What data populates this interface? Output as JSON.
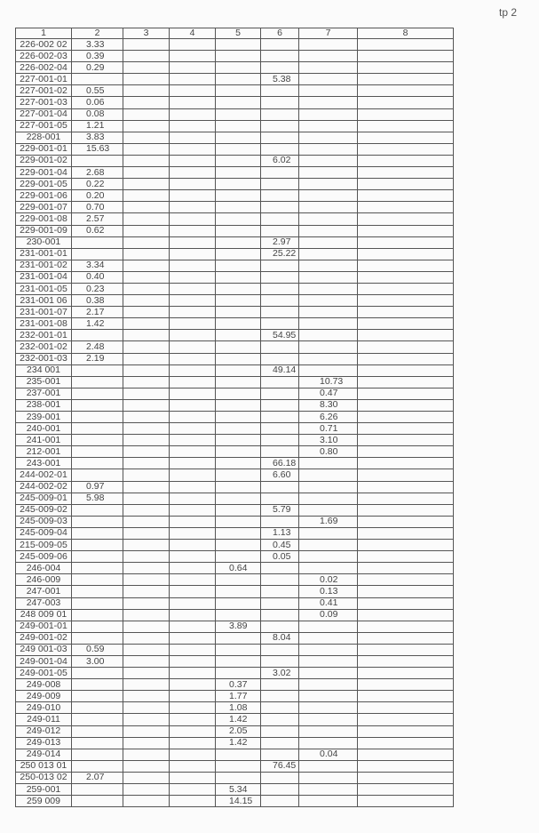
{
  "page_mark": "tp 2",
  "table": {
    "headers": [
      "1",
      "2",
      "3",
      "4",
      "5",
      "6",
      "7",
      "8"
    ],
    "rows": [
      [
        "226-002 02",
        "3.33",
        "",
        "",
        "",
        "",
        "",
        ""
      ],
      [
        "226-002-03",
        "0.39",
        "",
        "",
        "",
        "",
        "",
        ""
      ],
      [
        "226-002-04",
        "0.29",
        "",
        "",
        "",
        "",
        "",
        ""
      ],
      [
        "227-001-01",
        "",
        "",
        "",
        "",
        "5.38",
        "",
        ""
      ],
      [
        "227-001-02",
        "0.55",
        "",
        "",
        "",
        "",
        "",
        ""
      ],
      [
        "227-001-03",
        "0.06",
        "",
        "",
        "",
        "",
        "",
        ""
      ],
      [
        "227-001-04",
        "0.08",
        "",
        "",
        "",
        "",
        "",
        ""
      ],
      [
        "227-001-05",
        "1.21",
        "",
        "",
        "",
        "",
        "",
        ""
      ],
      [
        "228-001",
        "3.83",
        "",
        "",
        "",
        "",
        "",
        ""
      ],
      [
        "229-001-01",
        "15.63",
        "",
        "",
        "",
        "",
        "",
        ""
      ],
      [
        "229-001-02",
        "",
        "",
        "",
        "",
        "6.02",
        "",
        ""
      ],
      [
        "229-001-04",
        "2.68",
        "",
        "",
        "",
        "",
        "",
        ""
      ],
      [
        "229-001-05",
        "0.22",
        "",
        "",
        "",
        "",
        "",
        ""
      ],
      [
        "229-001-06",
        "0.20",
        "",
        "",
        "",
        "",
        "",
        ""
      ],
      [
        "229-001-07",
        "0.70",
        "",
        "",
        "",
        "",
        "",
        ""
      ],
      [
        "229-001-08",
        "2.57",
        "",
        "",
        "",
        "",
        "",
        ""
      ],
      [
        "229-001-09",
        "0.62",
        "",
        "",
        "",
        "",
        "",
        ""
      ],
      [
        "230-001",
        "",
        "",
        "",
        "",
        "2.97",
        "",
        ""
      ],
      [
        "231-001-01",
        "",
        "",
        "",
        "",
        "25.22",
        "",
        ""
      ],
      [
        "231-001-02",
        "3.34",
        "",
        "",
        "",
        "",
        "",
        ""
      ],
      [
        "231-001-04",
        "0.40",
        "",
        "",
        "",
        "",
        "",
        ""
      ],
      [
        "231-001-05",
        "0.23",
        "",
        "",
        "",
        "",
        "",
        ""
      ],
      [
        "231-001 06",
        "0.38",
        "",
        "",
        "",
        "",
        "",
        ""
      ],
      [
        "231-001-07",
        "2.17",
        "",
        "",
        "",
        "",
        "",
        ""
      ],
      [
        "231-001-08",
        "1.42",
        "",
        "",
        "",
        "",
        "",
        ""
      ],
      [
        "232-001-01",
        "",
        "",
        "",
        "",
        "54.95",
        "",
        ""
      ],
      [
        "232-001-02",
        "2.48",
        "",
        "",
        "",
        "",
        "",
        ""
      ],
      [
        "232-001-03",
        "2.19",
        "",
        "",
        "",
        "",
        "",
        ""
      ],
      [
        "234 001",
        "",
        "",
        "",
        "",
        "49.14",
        "",
        ""
      ],
      [
        "235-001",
        "",
        "",
        "",
        "",
        "",
        "10.73",
        ""
      ],
      [
        "237-001",
        "",
        "",
        "",
        "",
        "",
        "0.47",
        ""
      ],
      [
        "238-001",
        "",
        "",
        "",
        "",
        "",
        "8.30",
        ""
      ],
      [
        "239-001",
        "",
        "",
        "",
        "",
        "",
        "6.26",
        ""
      ],
      [
        "240-001",
        "",
        "",
        "",
        "",
        "",
        "0.71",
        ""
      ],
      [
        "241-001",
        "",
        "",
        "",
        "",
        "",
        "3.10",
        ""
      ],
      [
        "212-001",
        "",
        "",
        "",
        "",
        "",
        "0.80",
        ""
      ],
      [
        "243-001",
        "",
        "",
        "",
        "",
        "66.18",
        "",
        ""
      ],
      [
        "244-002-01",
        "",
        "",
        "",
        "",
        "6.60",
        "",
        ""
      ],
      [
        "244-002-02",
        "0.97",
        "",
        "",
        "",
        "",
        "",
        ""
      ],
      [
        "245-009-01",
        "5.98",
        "",
        "",
        "",
        "",
        "",
        ""
      ],
      [
        "245-009-02",
        "",
        "",
        "",
        "",
        "5.79",
        "",
        ""
      ],
      [
        "245-009-03",
        "",
        "",
        "",
        "",
        "",
        "1.69",
        ""
      ],
      [
        "245-009-04",
        "",
        "",
        "",
        "",
        "1.13",
        "",
        ""
      ],
      [
        "215-009-05",
        "",
        "",
        "",
        "",
        "0.45",
        "",
        ""
      ],
      [
        "245-009-06",
        "",
        "",
        "",
        "",
        "0.05",
        "",
        ""
      ],
      [
        "246-004",
        "",
        "",
        "",
        "0.64",
        "",
        "",
        ""
      ],
      [
        "246-009",
        "",
        "",
        "",
        "",
        "",
        "0.02",
        ""
      ],
      [
        "247-001",
        "",
        "",
        "",
        "",
        "",
        "0.13",
        ""
      ],
      [
        "247-003",
        "",
        "",
        "",
        "",
        "",
        "0.41",
        ""
      ],
      [
        "248 009 01",
        "",
        "",
        "",
        "",
        "",
        "0.09",
        ""
      ],
      [
        "249-001-01",
        "",
        "",
        "",
        "3.89",
        "",
        "",
        ""
      ],
      [
        "249-001-02",
        "",
        "",
        "",
        "",
        "8.04",
        "",
        ""
      ],
      [
        "249 001-03",
        "0.59",
        "",
        "",
        "",
        "",
        "",
        ""
      ],
      [
        "249-001-04",
        "3.00",
        "",
        "",
        "",
        "",
        "",
        ""
      ],
      [
        "249-001-05",
        "",
        "",
        "",
        "",
        "3.02",
        "",
        ""
      ],
      [
        "249-008",
        "",
        "",
        "",
        "0.37",
        "",
        "",
        ""
      ],
      [
        "249-009",
        "",
        "",
        "",
        "1.77",
        "",
        "",
        ""
      ],
      [
        "249-010",
        "",
        "",
        "",
        "1.08",
        "",
        "",
        ""
      ],
      [
        "249-011",
        "",
        "",
        "",
        "1.42",
        "",
        "",
        ""
      ],
      [
        "249-012",
        "",
        "",
        "",
        "2.05",
        "",
        "",
        ""
      ],
      [
        "249-013",
        "",
        "",
        "",
        "1.42",
        "",
        "",
        ""
      ],
      [
        "249-014",
        "",
        "",
        "",
        "",
        "",
        "0.04",
        ""
      ],
      [
        "250 013 01",
        "",
        "",
        "",
        "",
        "76.45",
        "",
        ""
      ],
      [
        "250-013 02",
        "2.07",
        "",
        "",
        "",
        "",
        "",
        ""
      ],
      [
        "259-001",
        "",
        "",
        "",
        "5.34",
        "",
        "",
        ""
      ],
      [
        "259 009",
        "",
        "",
        "",
        "14.15",
        "",
        "",
        ""
      ]
    ]
  }
}
